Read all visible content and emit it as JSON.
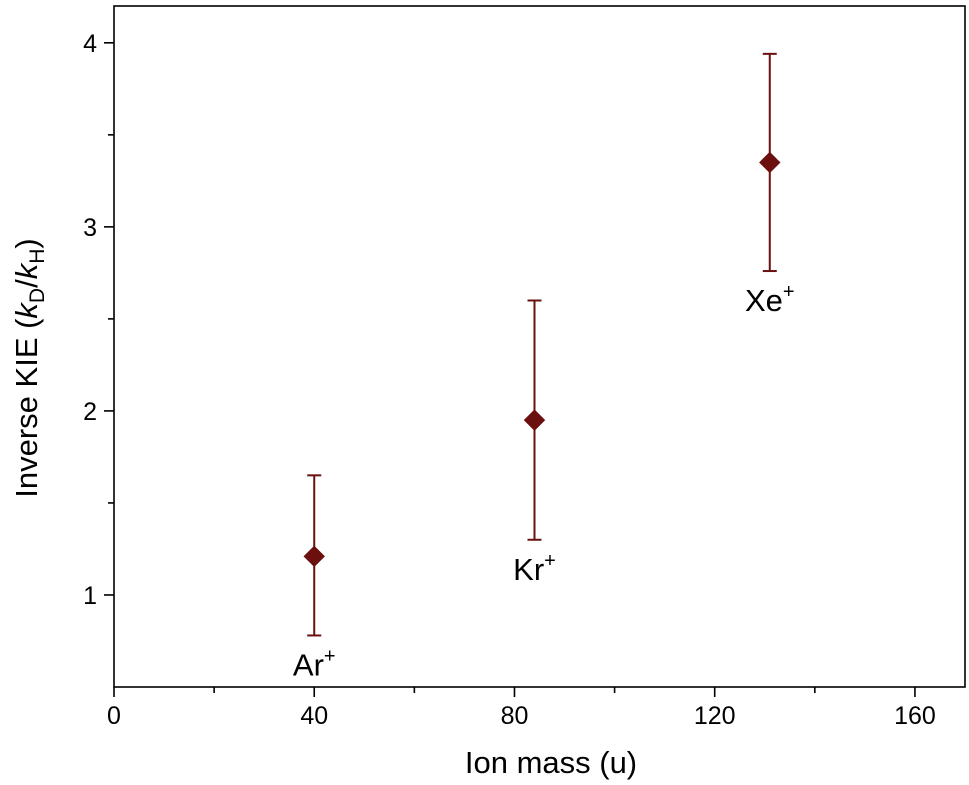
{
  "chart_data": {
    "type": "scatter",
    "xlabel": "Ion mass (u)",
    "ylabel_parts": {
      "prefix": "Inverse KIE (",
      "k1": "k",
      "sub1": "D",
      "slash": "/",
      "k2": "k",
      "sub2": "H",
      "suffix": ")"
    },
    "xlim": [
      0,
      170
    ],
    "ylim": [
      0.5,
      4.2
    ],
    "xticks": [
      0,
      40,
      80,
      120,
      160
    ],
    "xminor": [
      20,
      60,
      100,
      140
    ],
    "yticks": [
      1,
      2,
      3,
      4
    ],
    "yminor": [
      1.5,
      2.5,
      3.5
    ],
    "marker": "diamond",
    "color": "#6b0f0f",
    "points": [
      {
        "label": "Ar",
        "sup": "+",
        "x": 40,
        "y": 1.21,
        "err_low": 0.78,
        "err_high": 1.65
      },
      {
        "label": "Kr",
        "sup": "+",
        "x": 84,
        "y": 1.95,
        "err_low": 1.3,
        "err_high": 2.6
      },
      {
        "label": "Xe",
        "sup": "+",
        "x": 131,
        "y": 3.35,
        "err_low": 2.76,
        "err_high": 3.94
      }
    ]
  }
}
